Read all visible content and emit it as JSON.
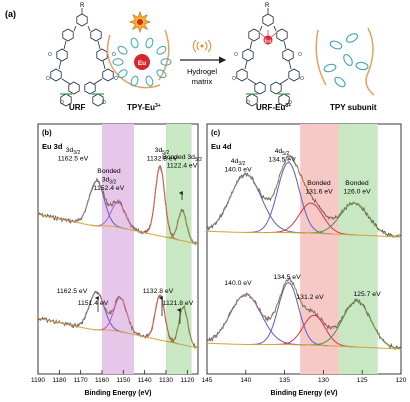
{
  "panel_a": {
    "label": "(a)",
    "structures": [
      {
        "label": "URF"
      },
      {
        "label": "TPY-Eu",
        "superscript": "3+"
      },
      {
        "label": "URF-Eu",
        "superscript": "3+"
      },
      {
        "label": "TPY subunit"
      }
    ],
    "arrow_label": [
      "Hydrogel",
      "matrix"
    ],
    "metal_label": "Eu",
    "r_label": "R",
    "methoxy_label": "O"
  },
  "axis_b": {
    "ticks": [
      "1190",
      "1180",
      "1170",
      "1160",
      "1150",
      "1140",
      "1130",
      "1120"
    ],
    "xlabel": "Binding Energy (eV)"
  },
  "axis_c": {
    "ticks": [
      "145",
      "140",
      "135",
      "130",
      "125",
      "120"
    ],
    "xlabel": "Binding Energy (eV)"
  },
  "panel_b": {
    "label": "(b)",
    "title": "Eu 3d",
    "bands": {
      "purple": "#e6c7e9",
      "green": "#c7e8c3"
    },
    "annotations": [
      {
        "lines": [
          "3d3/2",
          "1162.5 eV"
        ]
      },
      {
        "lines": [
          "Bonded",
          "3d3/2",
          "1152.4 eV"
        ]
      },
      {
        "lines": [
          "3d5/2",
          "1132.8 eV"
        ]
      },
      {
        "lines": [
          "Bonded 3d5/2",
          "1122.4 eV"
        ]
      },
      {
        "lines": [
          "1162.5 eV"
        ]
      },
      {
        "lines": [
          "1151.4 eV"
        ]
      },
      {
        "lines": [
          "1132.8 eV"
        ]
      },
      {
        "lines": [
          "1121.8 eV"
        ]
      }
    ]
  },
  "panel_c": {
    "label": "(c)",
    "title": "Eu 4d",
    "bands": {
      "pink": "#f6c9c6",
      "green": "#c7e8c3"
    },
    "annotations": [
      {
        "lines": [
          "4d3/2",
          "140.0 eV"
        ]
      },
      {
        "lines": [
          "4d5/2",
          "134.5 eV"
        ]
      },
      {
        "lines": [
          "Bonded",
          "131.6 eV"
        ]
      },
      {
        "lines": [
          "Bonded",
          "126.0 eV"
        ]
      },
      {
        "lines": [
          "140.0 eV"
        ]
      },
      {
        "lines": [
          "134.5 eV"
        ]
      },
      {
        "lines": [
          "131.2 eV"
        ]
      },
      {
        "lines": [
          "125.7 eV"
        ]
      }
    ]
  },
  "colors": {
    "raw": "#555a66",
    "envelope": "#e08a2a",
    "background": "#d8a23a",
    "peak_blue": "#5560c8",
    "peak_red": "#d8344a",
    "peak_green": "#3a9a4a",
    "peak_purple": "#b45cc8",
    "eu_red": "#d7262d",
    "structure": "#1c2b4a",
    "teal": "#3fa3b8",
    "arrow": "#222222"
  },
  "chart_data": [
    {
      "type": "line",
      "panel": "b",
      "title": "Eu 3d",
      "xlabel": "Binding Energy (eV)",
      "xlim": [
        1190,
        1115
      ],
      "x_reversed": true,
      "shaded_regions": [
        [
          1160,
          1145
        ],
        [
          1130,
          1118
        ]
      ],
      "series": [
        {
          "peaks": [
            1162.5,
            1152.4,
            1132.8,
            1122.4
          ]
        },
        {
          "peaks": [
            1162.5,
            1151.4,
            1132.8,
            1121.8
          ]
        }
      ]
    },
    {
      "type": "line",
      "panel": "c",
      "title": "Eu 4d",
      "xlabel": "Binding Energy (eV)",
      "xlim": [
        145,
        120
      ],
      "x_reversed": true,
      "shaded_regions": [
        [
          133,
          128
        ],
        [
          128,
          123
        ]
      ],
      "series": [
        {
          "peaks": [
            140.0,
            134.5,
            131.6,
            126.0
          ]
        },
        {
          "peaks": [
            140.0,
            134.5,
            131.2,
            125.7
          ]
        }
      ]
    }
  ]
}
